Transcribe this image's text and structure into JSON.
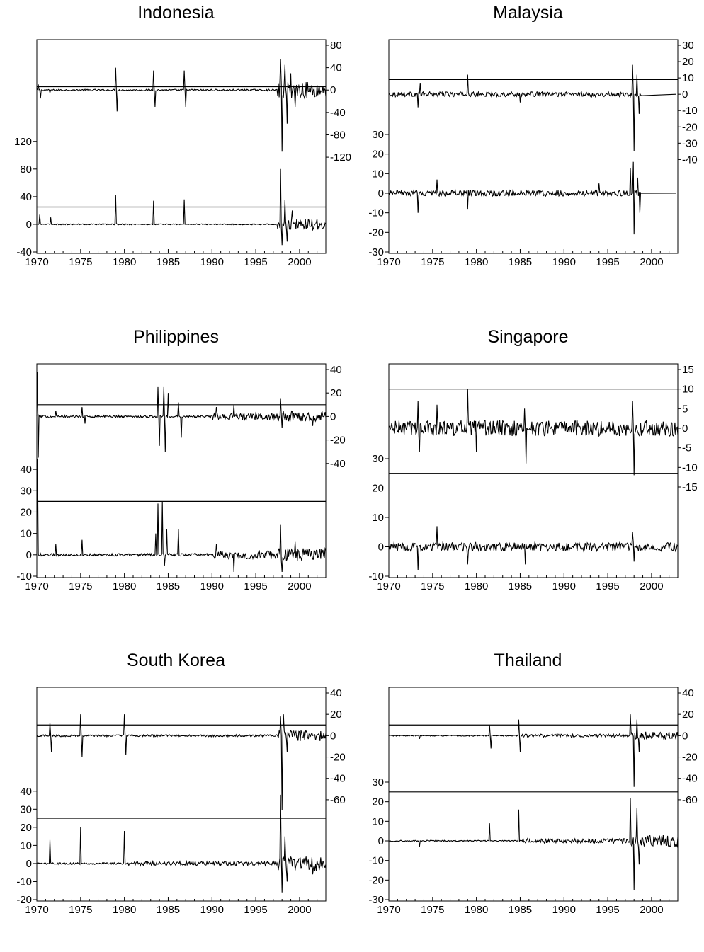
{
  "chart_data": [
    {
      "type": "line",
      "title": "Indonesia",
      "x_ticks": [
        "1970",
        "1975",
        "1980",
        "1985",
        "1990",
        "1995",
        "2000"
      ],
      "xlim": [
        1970,
        2003
      ],
      "series": [
        {
          "axis": "right",
          "ylim": [
            -130,
            80
          ],
          "yticks": [
            "80",
            "40",
            "0",
            "-40",
            "-80",
            "-120"
          ],
          "ref_line": 6,
          "baseline": 0,
          "noise": 1.5,
          "start": 1970,
          "spikes": [
            [
              1970.2,
              10
            ],
            [
              1970.4,
              -15
            ],
            [
              1971.5,
              -5
            ],
            [
              1979.0,
              40
            ],
            [
              1979.2,
              -38
            ],
            [
              1983.3,
              35
            ],
            [
              1983.5,
              -30
            ],
            [
              1986.8,
              35
            ],
            [
              1987.0,
              -30
            ],
            [
              1997.8,
              55
            ],
            [
              1998.0,
              -110
            ],
            [
              1998.3,
              45
            ],
            [
              1998.6,
              -60
            ],
            [
              1999.0,
              30
            ],
            [
              1999.5,
              -30
            ]
          ],
          "noise_after": [
            [
              1997.5,
              15
            ]
          ]
        },
        {
          "axis": "left",
          "ylim": [
            -40,
            130
          ],
          "yticks": [
            "120",
            "80",
            "40",
            "0",
            "-40"
          ],
          "ref_line": 25,
          "baseline": 0,
          "noise": 0.8,
          "start": 1970,
          "spikes": [
            [
              1970.3,
              14
            ],
            [
              1971.6,
              10
            ],
            [
              1979.0,
              42
            ],
            [
              1983.3,
              34
            ],
            [
              1986.8,
              36
            ],
            [
              1997.8,
              80
            ],
            [
              1998.0,
              -30
            ],
            [
              1998.3,
              35
            ],
            [
              1998.6,
              -25
            ],
            [
              1999.2,
              20
            ]
          ],
          "noise_after": [
            [
              1997.5,
              8
            ]
          ]
        }
      ]
    },
    {
      "type": "line",
      "title": "Malaysia",
      "x_ticks": [
        "1970",
        "1975",
        "1980",
        "1985",
        "1990",
        "1995",
        "2000"
      ],
      "xlim": [
        1970,
        2003
      ],
      "series": [
        {
          "axis": "right",
          "ylim": [
            -42,
            30
          ],
          "yticks": [
            "30",
            "20",
            "10",
            "0",
            "-10",
            "-20",
            "-30",
            "-40"
          ],
          "ref_line": 9,
          "baseline": 0,
          "noise": 1.5,
          "start": 1970,
          "end": 1998.8,
          "spikes": [
            [
              1973.3,
              -8
            ],
            [
              1973.6,
              7
            ],
            [
              1979.0,
              12
            ],
            [
              1985.0,
              -5
            ],
            [
              1997.8,
              18
            ],
            [
              1998.0,
              -35
            ],
            [
              1998.3,
              12
            ],
            [
              1998.6,
              -12
            ]
          ],
          "noise_after": []
        },
        {
          "axis": "left",
          "ylim": [
            -30,
            30
          ],
          "yticks": [
            "30",
            "20",
            "10",
            "0",
            "-10",
            "-20",
            "-30"
          ],
          "ref_line": null,
          "baseline": 0,
          "noise": 1.5,
          "start": 1970,
          "end": 1998.8,
          "spikes": [
            [
              1973.3,
              -10
            ],
            [
              1975.5,
              7
            ],
            [
              1979.0,
              -8
            ],
            [
              1994.0,
              5
            ],
            [
              1997.6,
              13
            ],
            [
              1997.9,
              16
            ],
            [
              1998.0,
              -21
            ],
            [
              1998.4,
              8
            ],
            [
              1998.7,
              -10
            ]
          ],
          "noise_after": []
        }
      ]
    },
    {
      "type": "line",
      "title": "Philippines",
      "x_ticks": [
        "1970",
        "1975",
        "1980",
        "1985",
        "1990",
        "1995",
        "2000"
      ],
      "xlim": [
        1970,
        2003
      ],
      "series": [
        {
          "axis": "right",
          "ylim": [
            -60,
            40
          ],
          "yticks": [
            "40",
            "20",
            "0",
            "-20",
            "-40"
          ],
          "ref_line": 10,
          "baseline": 0,
          "noise": 1.0,
          "start": 1970,
          "spikes": [
            [
              1970.1,
              38
            ],
            [
              1970.2,
              -35
            ],
            [
              1972.2,
              5
            ],
            [
              1975.2,
              8
            ],
            [
              1975.5,
              -6
            ],
            [
              1983.8,
              25
            ],
            [
              1984.0,
              -25
            ],
            [
              1984.5,
              25
            ],
            [
              1984.7,
              -30
            ],
            [
              1985.0,
              20
            ],
            [
              1986.2,
              12
            ],
            [
              1986.5,
              -18
            ],
            [
              1990.5,
              8
            ],
            [
              1992.5,
              10
            ],
            [
              1997.8,
              15
            ],
            [
              1998.0,
              -10
            ],
            [
              2001.5,
              -8
            ]
          ],
          "noise_after": [
            [
              1990,
              3
            ],
            [
              1997.5,
              5
            ]
          ]
        },
        {
          "axis": "left",
          "ylim": [
            -10,
            45
          ],
          "yticks": [
            "40",
            "30",
            "20",
            "10",
            "0",
            "-10"
          ],
          "ref_line": 25,
          "baseline": 0,
          "noise": 0.6,
          "start": 1970,
          "spikes": [
            [
              1970.1,
              45
            ],
            [
              1972.2,
              5
            ],
            [
              1975.2,
              7
            ],
            [
              1983.6,
              10
            ],
            [
              1983.8,
              24
            ],
            [
              1984.3,
              25
            ],
            [
              1984.6,
              -5
            ],
            [
              1984.8,
              12
            ],
            [
              1986.2,
              12
            ],
            [
              1990.5,
              5
            ],
            [
              1992.5,
              -8
            ],
            [
              1997.8,
              14
            ],
            [
              1998.0,
              -8
            ],
            [
              1999.5,
              6
            ]
          ],
          "noise_after": [
            [
              1990,
              2
            ],
            [
              1997.5,
              3
            ]
          ]
        }
      ]
    },
    {
      "type": "line",
      "title": "Singapore",
      "x_ticks": [
        "1970",
        "1975",
        "1980",
        "1985",
        "1990",
        "1995",
        "2000"
      ],
      "xlim": [
        1970,
        2003
      ],
      "series": [
        {
          "axis": "right",
          "ylim": [
            -15,
            15
          ],
          "yticks": [
            "15",
            "10",
            "5",
            "0",
            "-5",
            "-10",
            "-15"
          ],
          "ref_line": 10,
          "baseline": 0,
          "noise": 2.0,
          "start": 1970,
          "spikes": [
            [
              1973.3,
              7
            ],
            [
              1973.5,
              -6
            ],
            [
              1975.5,
              6
            ],
            [
              1979.0,
              10
            ],
            [
              1980.0,
              -6
            ],
            [
              1985.5,
              5
            ],
            [
              1985.7,
              -9
            ],
            [
              1997.8,
              7
            ],
            [
              1998.0,
              -12
            ]
          ],
          "noise_after": []
        },
        {
          "axis": "left",
          "ylim": [
            -10,
            30
          ],
          "yticks": [
            "30",
            "20",
            "10",
            "0",
            "-10"
          ],
          "ref_line": 25,
          "baseline": 0,
          "noise": 1.5,
          "start": 1970,
          "spikes": [
            [
              1973.3,
              -8
            ],
            [
              1975.5,
              7
            ],
            [
              1979.0,
              -6
            ],
            [
              1985.6,
              -6
            ],
            [
              1997.8,
              5
            ],
            [
              1998.0,
              -5
            ]
          ],
          "noise_after": []
        }
      ]
    },
    {
      "type": "line",
      "title": "South Korea",
      "x_ticks": [
        "1970",
        "1975",
        "1980",
        "1985",
        "1990",
        "1995",
        "2000"
      ],
      "xlim": [
        1970,
        2003
      ],
      "series": [
        {
          "axis": "right",
          "ylim": [
            -70,
            40
          ],
          "yticks": [
            "40",
            "20",
            "0",
            "-20",
            "-40",
            "-60"
          ],
          "ref_line": 10,
          "baseline": 0,
          "noise": 1.0,
          "start": 1970,
          "spikes": [
            [
              1971.5,
              12
            ],
            [
              1971.7,
              -15
            ],
            [
              1975.0,
              20
            ],
            [
              1975.2,
              -20
            ],
            [
              1980.0,
              20
            ],
            [
              1980.2,
              -18
            ],
            [
              1997.8,
              18
            ],
            [
              1998.0,
              -70
            ],
            [
              1998.2,
              20
            ],
            [
              1998.6,
              -15
            ]
          ],
          "noise_after": [
            [
              1997.5,
              5
            ]
          ]
        },
        {
          "axis": "left",
          "ylim": [
            -20,
            45
          ],
          "yticks": [
            "40",
            "30",
            "20",
            "10",
            "0",
            "-10",
            "-20"
          ],
          "ref_line": 25,
          "baseline": 0,
          "noise": 0.5,
          "start": 1970,
          "spikes": [
            [
              1971.5,
              13
            ],
            [
              1975.0,
              20
            ],
            [
              1980.0,
              18
            ],
            [
              1997.8,
              38
            ],
            [
              1998.0,
              -16
            ],
            [
              1998.3,
              15
            ],
            [
              1998.6,
              -10
            ],
            [
              2001.5,
              -6
            ]
          ],
          "noise_after": [
            [
              1980.5,
              1.2
            ],
            [
              1997.5,
              4
            ]
          ]
        }
      ]
    },
    {
      "type": "line",
      "title": "Thailand",
      "x_ticks": [
        "1970",
        "1975",
        "1980",
        "1985",
        "1990",
        "1995",
        "2000"
      ],
      "xlim": [
        1970,
        2003
      ],
      "series": [
        {
          "axis": "right",
          "ylim": [
            -70,
            40
          ],
          "yticks": [
            "40",
            "20",
            "0",
            "-20",
            "-40",
            "-60"
          ],
          "ref_line": 10,
          "baseline": 0,
          "noise": 0.5,
          "start": 1970,
          "spikes": [
            [
              1973.5,
              -3
            ],
            [
              1981.5,
              10
            ],
            [
              1981.7,
              -12
            ],
            [
              1984.8,
              15
            ],
            [
              1985.0,
              -15
            ],
            [
              1997.6,
              20
            ],
            [
              1998.0,
              -48
            ],
            [
              1998.3,
              15
            ],
            [
              1998.6,
              -15
            ]
          ],
          "noise_after": [
            [
              1985.2,
              1.5
            ],
            [
              1997.5,
              4
            ]
          ]
        },
        {
          "axis": "left",
          "ylim": [
            -30,
            30
          ],
          "yticks": [
            "30",
            "20",
            "10",
            "0",
            "-10",
            "-20",
            "-30"
          ],
          "ref_line": 25,
          "baseline": 0,
          "noise": 0.3,
          "start": 1970,
          "spikes": [
            [
              1973.5,
              -3
            ],
            [
              1981.5,
              9
            ],
            [
              1984.8,
              16
            ],
            [
              1997.6,
              22
            ],
            [
              1998.0,
              -25
            ],
            [
              1998.3,
              17
            ],
            [
              1998.6,
              -12
            ]
          ],
          "noise_after": [
            [
              1985.2,
              1.2
            ],
            [
              1997.5,
              3
            ]
          ]
        }
      ]
    }
  ]
}
